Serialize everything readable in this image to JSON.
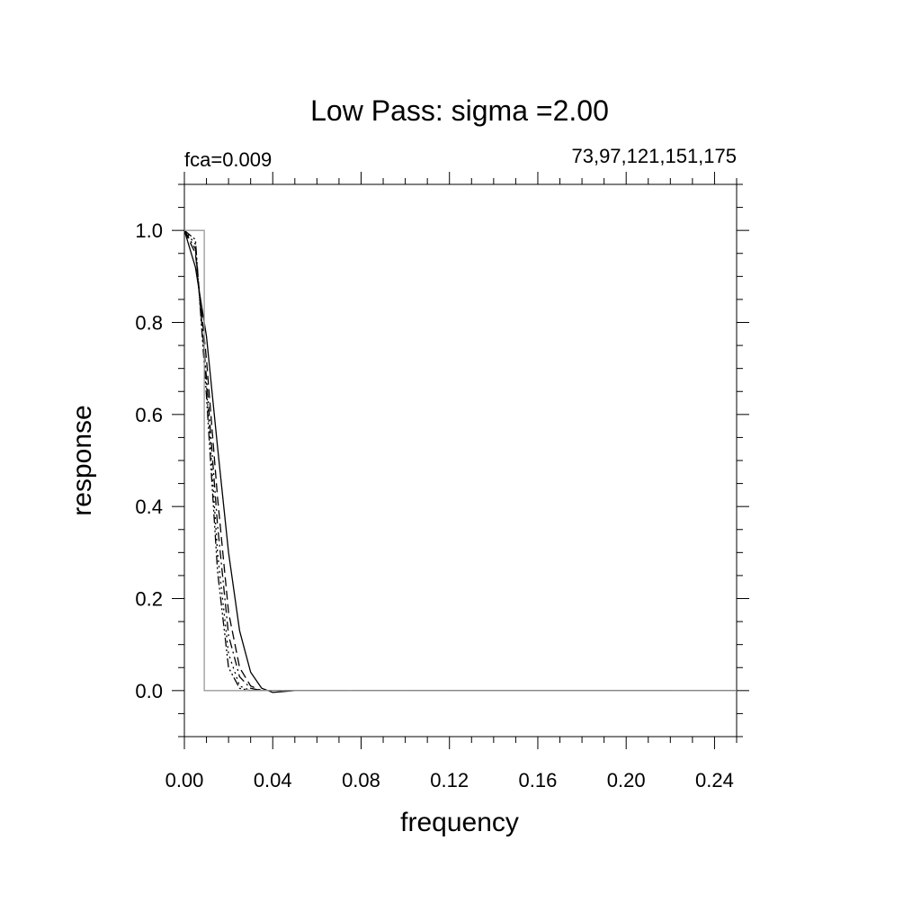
{
  "chart_data": {
    "type": "line",
    "title": "Low Pass:  sigma =2.00",
    "left_annotation": "fca=0.009",
    "right_annotation": "73,97,121,151,175",
    "x_label": "frequency",
    "y_label": "response",
    "x": [
      0,
      0.005,
      0.01,
      0.015,
      0.02,
      0.025,
      0.03,
      0.035,
      0.04,
      0.05,
      0.25
    ],
    "series": [
      {
        "color": "#000000",
        "dash": "solid",
        "values": [
          1,
          0.92,
          0.77,
          0.53,
          0.3,
          0.13,
          0.04,
          0.005,
          -0.004,
          0,
          0
        ]
      },
      {
        "color": "#000000",
        "dash": "dashed",
        "values": [
          1,
          0.95,
          0.72,
          0.42,
          0.17,
          0.05,
          0.01,
          0,
          0,
          0,
          0
        ]
      },
      {
        "color": "#000000",
        "dash": "dash-dot",
        "values": [
          1,
          0.96,
          0.68,
          0.36,
          0.12,
          0.03,
          0.005,
          0,
          0,
          0,
          0
        ]
      },
      {
        "color": "#000000",
        "dash": "dotted",
        "values": [
          1,
          0.97,
          0.66,
          0.3,
          0.08,
          0.01,
          0,
          0,
          0,
          0,
          0
        ]
      },
      {
        "color": "#000000",
        "dash": "dash-dot-dot",
        "values": [
          1,
          0.98,
          0.64,
          0.26,
          0.05,
          0.005,
          0,
          0,
          0,
          0,
          0
        ]
      },
      {
        "color": "#999999",
        "dash": "solid",
        "x": [
          0,
          0.009,
          0.009,
          0.25
        ],
        "values": [
          1,
          1,
          0,
          0
        ]
      }
    ],
    "xlim": [
      0,
      0.25
    ],
    "ylim": [
      -0.1,
      1.1
    ],
    "xticks": [
      {
        "value": 0,
        "label": "0.00"
      },
      0.04,
      0.08,
      0.12,
      0.16,
      {
        "value": 0.2,
        "label": "0.20"
      },
      0.24
    ],
    "yticks": [
      {
        "value": 0,
        "label": "0.0"
      },
      0.2,
      0.4,
      0.6,
      0.8,
      {
        "value": 1,
        "label": "1.0"
      }
    ],
    "xminorticks": [
      0.01,
      0.02,
      0.03,
      0.05,
      0.06,
      0.07,
      0.09,
      0.1,
      0.11,
      0.13,
      0.14,
      0.15,
      0.17,
      0.18,
      0.19,
      0.21,
      0.22,
      0.23,
      0.25
    ],
    "yminorticks": [
      -0.1,
      -0.05,
      0.05,
      0.1,
      0.15,
      0.25,
      0.3,
      0.35,
      0.45,
      0.5,
      0.55,
      0.65,
      0.7,
      0.75,
      0.85,
      0.9,
      0.95,
      1.05,
      1.1
    ],
    "grid": false
  }
}
